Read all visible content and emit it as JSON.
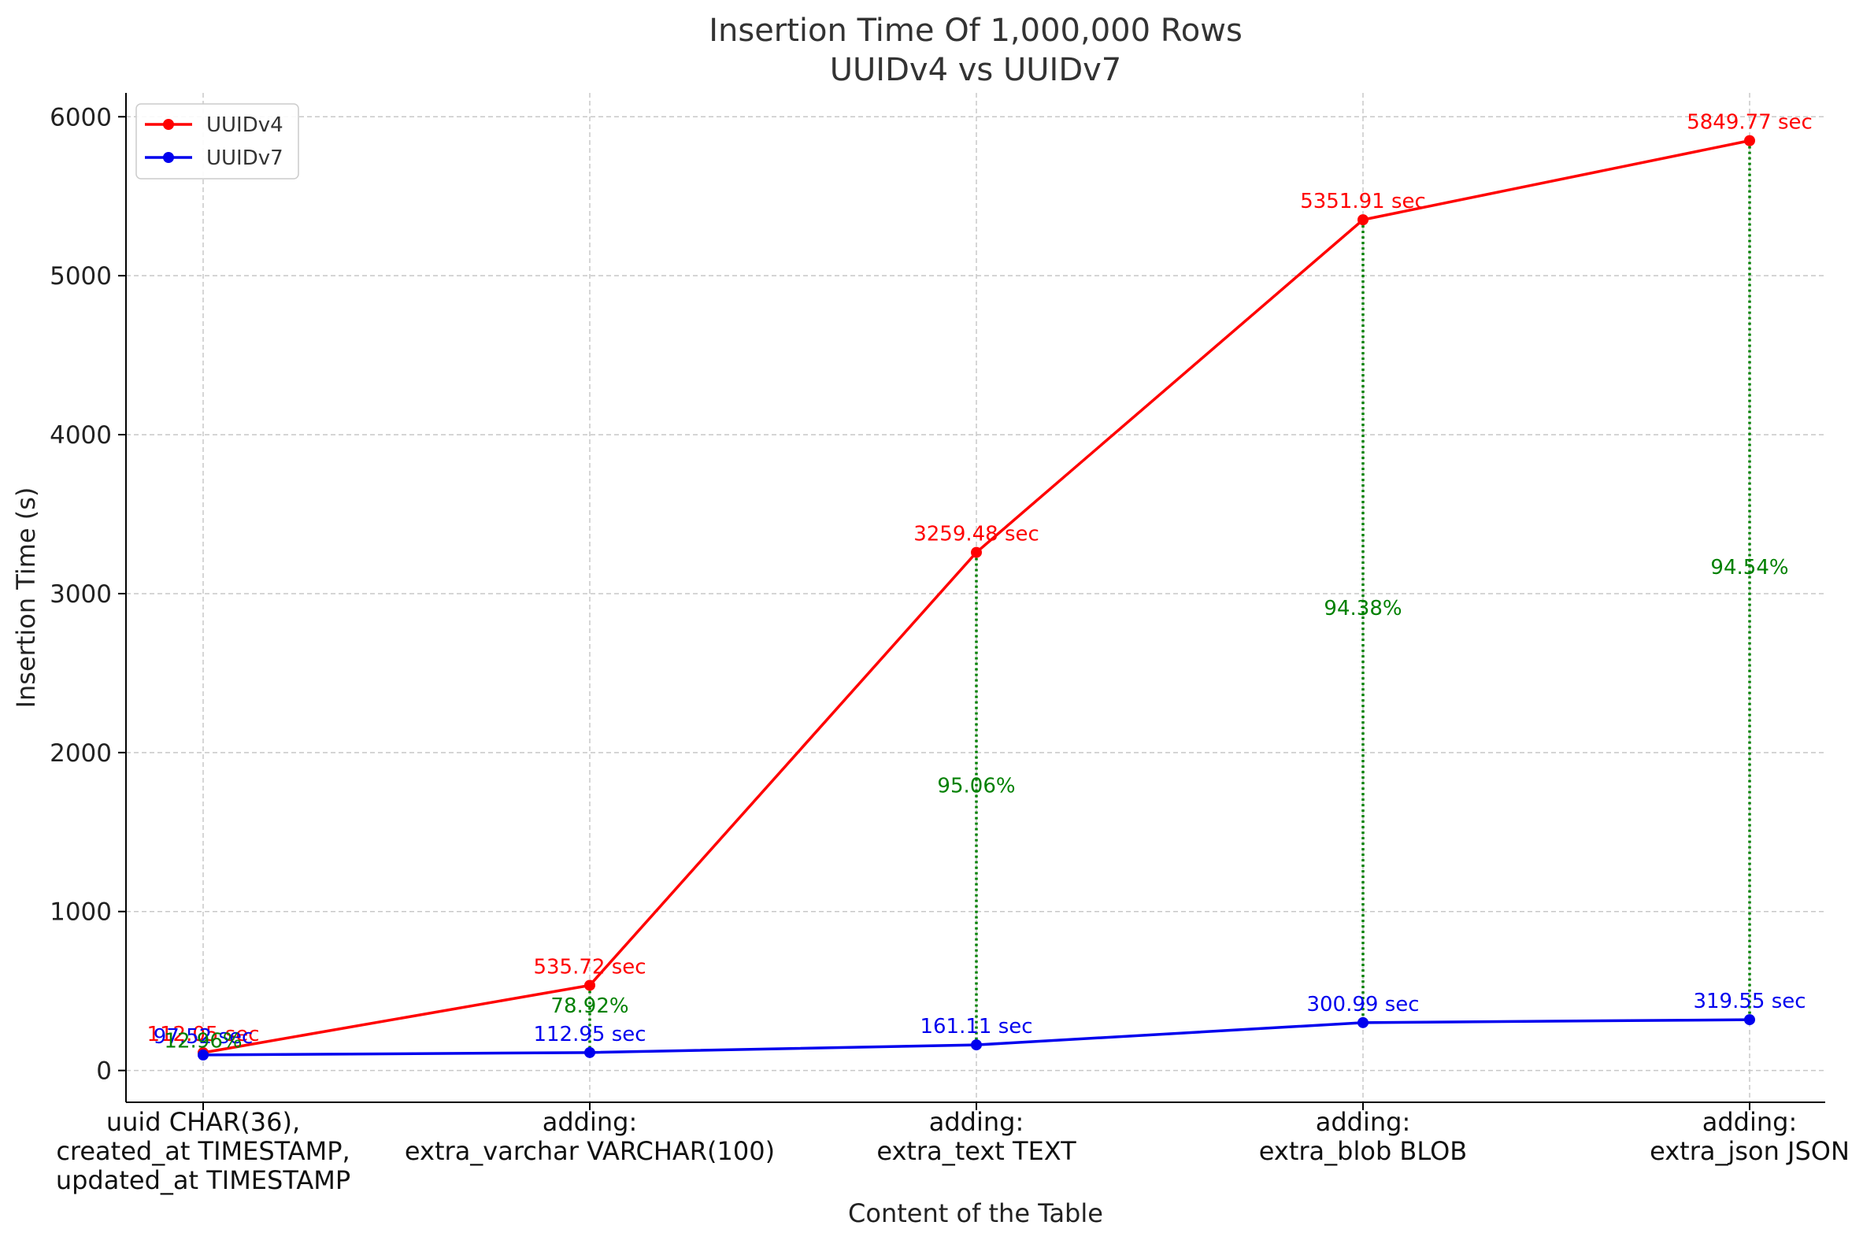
{
  "chart_data": {
    "type": "line",
    "title_lines": [
      "Insertion Time Of 1,000,000 Rows",
      "UUIDv4 vs UUIDv7"
    ],
    "xlabel": "Content of the Table",
    "ylabel": "Insertion Time (s)",
    "ylim": [
      -200,
      6150
    ],
    "yticks": [
      0,
      1000,
      2000,
      3000,
      4000,
      5000,
      6000
    ],
    "grid": true,
    "legend_position": "top-left",
    "categories": [
      [
        "uuid CHAR(36),",
        "created_at TIMESTAMP,",
        "updated_at TIMESTAMP"
      ],
      [
        "adding:",
        "extra_varchar VARCHAR(100)"
      ],
      [
        "adding:",
        "extra_text TEXT"
      ],
      [
        "adding:",
        "extra_blob BLOB"
      ],
      [
        "adding:",
        "extra_json JSON"
      ]
    ],
    "series": [
      {
        "name": "UUIDv4",
        "color": "#ff0000",
        "values": [
          112.05,
          535.72,
          3259.48,
          5351.91,
          5849.77
        ],
        "labels": [
          "112.05 sec",
          "535.72 sec",
          "3259.48 sec",
          "5351.91 sec",
          "5849.77 sec"
        ]
      },
      {
        "name": "UUIDv7",
        "color": "#0000ee",
        "values": [
          97.52,
          112.95,
          161.11,
          300.99,
          319.55
        ],
        "labels": [
          "97.52 sec",
          "112.95 sec",
          "161.11 sec",
          "300.99 sec",
          "319.55 sec"
        ]
      }
    ],
    "improvements": {
      "color": "#008000",
      "labels": [
        "12.96%",
        "78.92%",
        "95.06%",
        "94.38%",
        "94.54%"
      ]
    }
  }
}
